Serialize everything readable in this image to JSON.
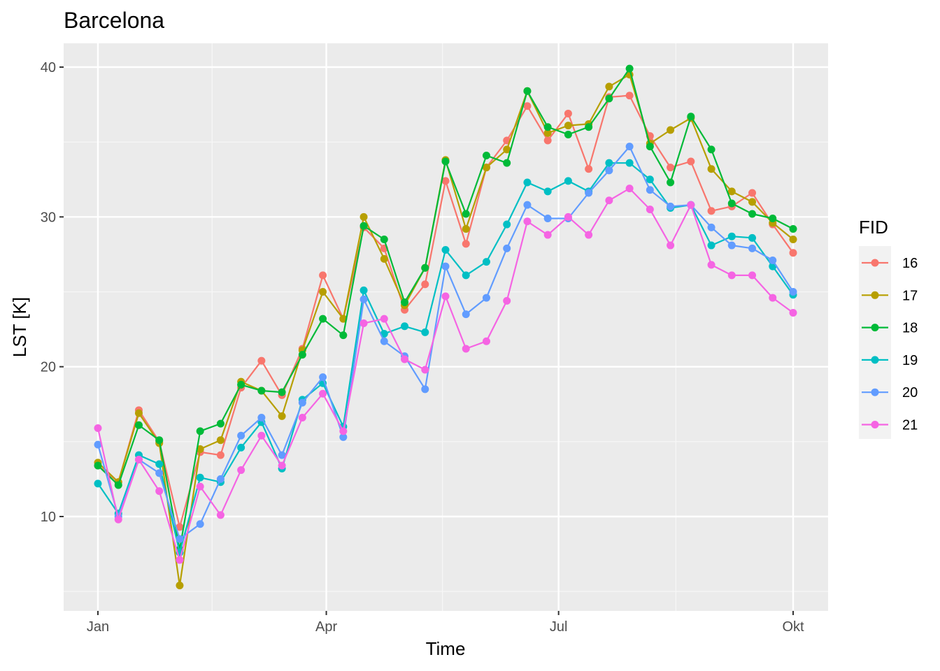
{
  "chart_data": {
    "type": "line",
    "title": "Barcelona",
    "xlabel": "Time",
    "ylabel": "LST [K]",
    "ylim": [
      3.7,
      41.6
    ],
    "y_ticks": [
      10,
      20,
      30,
      40
    ],
    "x_tick_labels": [
      "Jan",
      "Apr",
      "Jul",
      "Okt"
    ],
    "x_tick_index": [
      0,
      11.17,
      22.53,
      34.0
    ],
    "grid": true,
    "legend": {
      "title": "FID",
      "position": "right",
      "entries": [
        "16",
        "17",
        "18",
        "19",
        "20",
        "21"
      ]
    },
    "x_count": 35,
    "series": [
      {
        "name": "16",
        "color": "#F8766D",
        "values": [
          13.4,
          12.3,
          17.1,
          15.0,
          9.3,
          14.3,
          14.1,
          18.6,
          20.4,
          18.1,
          21.2,
          26.1,
          23.2,
          29.3,
          27.9,
          23.8,
          25.5,
          32.4,
          28.2,
          33.3,
          35.1,
          37.4,
          35.1,
          36.9,
          33.2,
          38.0,
          38.1,
          35.4,
          33.3,
          33.7,
          30.4,
          30.7,
          31.6,
          29.5,
          27.6
        ]
      },
      {
        "name": "17",
        "color": "#B79F00",
        "values": [
          13.6,
          12.3,
          16.9,
          14.9,
          5.4,
          14.5,
          15.1,
          19.0,
          18.4,
          16.7,
          21.1,
          25.0,
          23.2,
          30.0,
          27.2,
          24.1,
          26.6,
          33.8,
          29.2,
          33.3,
          34.5,
          38.4,
          35.6,
          36.1,
          36.2,
          38.7,
          39.5,
          34.9,
          35.8,
          36.6,
          33.2,
          31.7,
          31.0,
          29.6,
          28.5
        ]
      },
      {
        "name": "18",
        "color": "#00BA38",
        "values": [
          13.4,
          12.1,
          16.1,
          15.1,
          7.8,
          15.7,
          16.2,
          18.8,
          18.4,
          18.3,
          20.8,
          23.2,
          22.1,
          29.4,
          28.5,
          24.3,
          26.6,
          33.7,
          30.2,
          34.1,
          33.6,
          38.4,
          36.0,
          35.5,
          36.0,
          37.9,
          39.9,
          34.7,
          32.3,
          36.7,
          34.5,
          30.9,
          30.2,
          29.9,
          29.2
        ]
      },
      {
        "name": "19",
        "color": "#00BFC4",
        "values": [
          12.2,
          10.2,
          14.1,
          13.5,
          7.6,
          12.6,
          12.3,
          14.6,
          16.3,
          13.2,
          17.8,
          18.9,
          16.0,
          25.1,
          22.2,
          22.7,
          22.3,
          27.8,
          26.1,
          27.0,
          29.5,
          32.3,
          31.7,
          32.4,
          31.7,
          33.6,
          33.6,
          32.5,
          30.6,
          30.8,
          28.1,
          28.7,
          28.6,
          26.7,
          24.8
        ]
      },
      {
        "name": "20",
        "color": "#619CFF",
        "values": [
          14.8,
          10.0,
          13.8,
          12.9,
          8.5,
          9.5,
          12.5,
          15.4,
          16.6,
          14.1,
          17.6,
          19.3,
          15.3,
          24.5,
          21.7,
          20.7,
          18.5,
          26.7,
          23.5,
          24.6,
          27.9,
          30.8,
          29.9,
          29.9,
          31.6,
          33.1,
          34.7,
          31.8,
          30.7,
          30.8,
          29.3,
          28.1,
          27.9,
          27.1,
          25.0
        ]
      },
      {
        "name": "21",
        "color": "#F564E3",
        "values": [
          15.9,
          9.8,
          13.8,
          11.7,
          7.1,
          12.0,
          10.1,
          13.1,
          15.4,
          13.4,
          16.6,
          18.2,
          15.7,
          22.9,
          23.2,
          20.5,
          19.8,
          24.7,
          21.2,
          21.7,
          24.4,
          29.7,
          28.8,
          30.0,
          28.8,
          31.1,
          31.9,
          30.5,
          28.1,
          30.8,
          26.8,
          26.1,
          26.1,
          24.6,
          23.6
        ]
      }
    ]
  },
  "header": {
    "title": "Barcelona"
  },
  "axes": {
    "x_title": "Time",
    "y_title": "LST [K]"
  },
  "legend": {
    "title": "FID"
  }
}
